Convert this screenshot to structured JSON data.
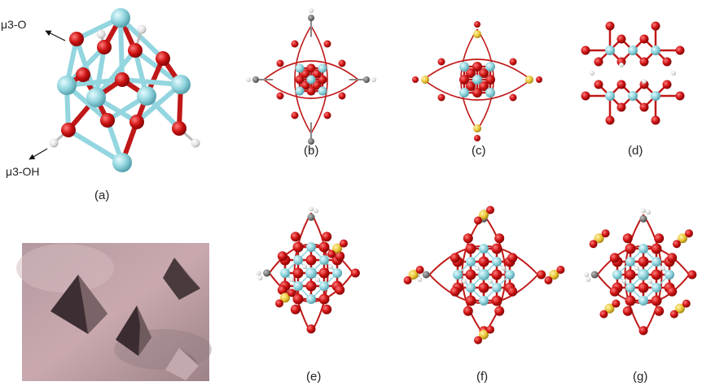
{
  "labels": {
    "mu3_o": "μ3-O",
    "mu3_oh": "μ3-OH",
    "a": "(a)",
    "b": "(b)",
    "c": "(c)",
    "d": "(d)",
    "e": "(e)",
    "f": "(f)",
    "g": "(g)"
  },
  "colors": {
    "zr": "#8fd3dc",
    "oxygen": "#cc1111",
    "hydrogen": "#e8e8e8",
    "carbon": "#7a7a7a",
    "sulfur": "#e8c232",
    "bond_red": "#c01818",
    "bond_cyan": "#93d6e0"
  },
  "icons": [
    "arrow-icon",
    "crystal-photo"
  ]
}
